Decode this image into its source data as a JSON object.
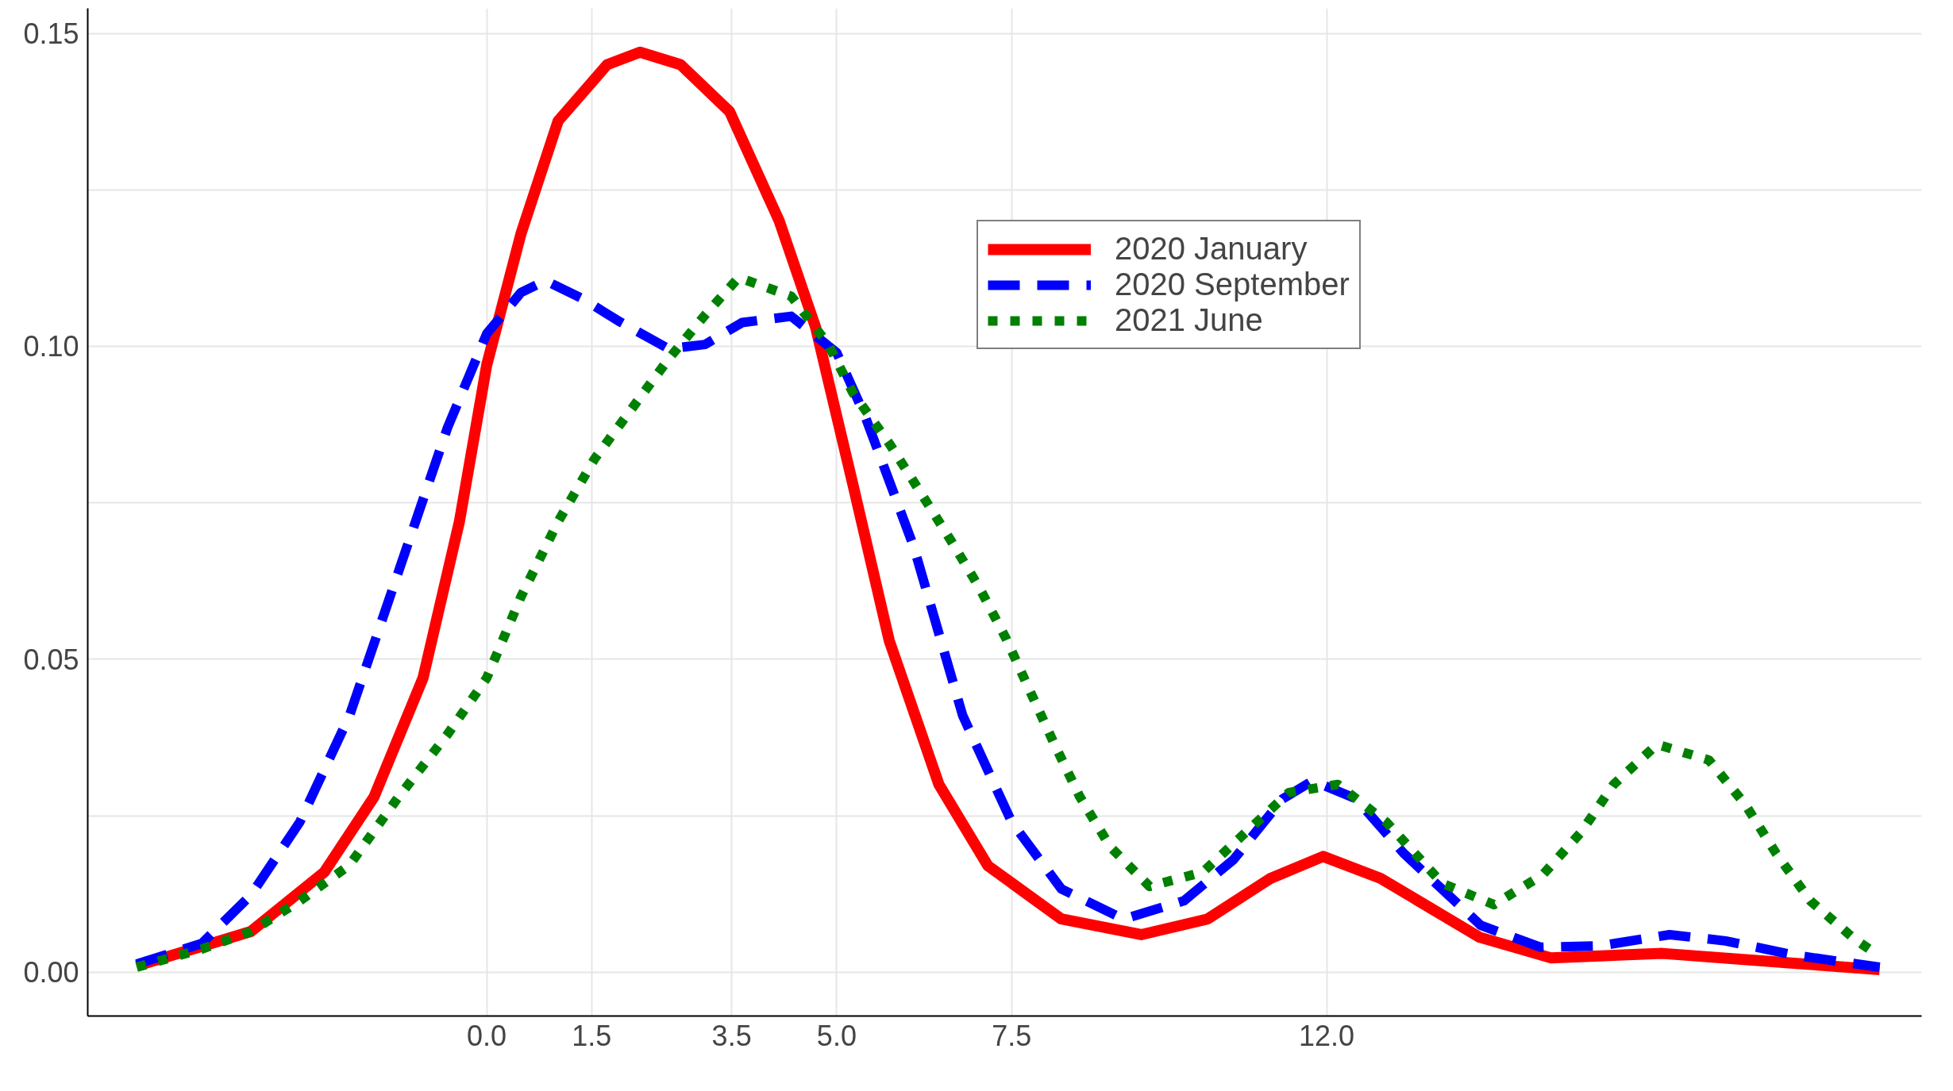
{
  "chart_data": {
    "type": "line",
    "xlim": [
      -5.7,
      20.5
    ],
    "ylim": [
      -0.007,
      0.154
    ],
    "xticks": [
      {
        "value": 0,
        "label": "0.0"
      },
      {
        "value": 1.5,
        "label": "1.5"
      },
      {
        "value": 3.5,
        "label": "3.5"
      },
      {
        "value": 5,
        "label": "5.0"
      },
      {
        "value": 7.5,
        "label": "7.5"
      },
      {
        "value": 12,
        "label": "12.0"
      }
    ],
    "yticks": [
      {
        "value": 0,
        "label": "0.00"
      },
      {
        "value": 0.025,
        "label": null
      },
      {
        "value": 0.05,
        "label": "0.05"
      },
      {
        "value": 0.075,
        "label": null
      },
      {
        "value": 0.1,
        "label": "0.10"
      },
      {
        "value": 0.125,
        "label": null
      },
      {
        "value": 0.15,
        "label": "0.15"
      }
    ],
    "grid": true,
    "legend": "top right",
    "series": [
      {
        "name": "2020 January",
        "color": "#ff0000",
        "line_style": "solid",
        "x": [
          -5.0,
          -3.37,
          -2.32,
          -1.61,
          -0.91,
          -0.39,
          0,
          0.49,
          1.02,
          1.72,
          2.19,
          2.77,
          3.47,
          4.18,
          4.7,
          5.23,
          5.75,
          6.46,
          7.16,
          8.21,
          9.35,
          10.3,
          11.2,
          11.95,
          12.77,
          14.18,
          15.2,
          16.8,
          18.6,
          19.9
        ],
        "values": [
          0.001,
          0.0065,
          0.016,
          0.028,
          0.047,
          0.072,
          0.097,
          0.118,
          0.136,
          0.145,
          0.147,
          0.145,
          0.1375,
          0.12,
          0.103,
          0.078,
          0.053,
          0.03,
          0.017,
          0.0085,
          0.006,
          0.0085,
          0.015,
          0.0185,
          0.015,
          0.0056,
          0.0023,
          0.003,
          0.0015,
          0.0004
        ]
      },
      {
        "name": "2020 September",
        "color": "#0000ff",
        "line_style": "dashed",
        "x": [
          -5.0,
          -4.07,
          -3.37,
          -2.67,
          -1.96,
          -1.26,
          -0.56,
          0,
          0.49,
          0.84,
          1.37,
          1.89,
          2.6,
          3.12,
          3.65,
          4.35,
          5.0,
          5.4,
          6.1,
          6.8,
          7.5,
          8.21,
          9.1,
          9.96,
          10.67,
          11.37,
          11.8,
          12.42,
          13.1,
          14.2,
          15.05,
          15.9,
          16.9,
          17.7,
          18.7,
          19.9
        ],
        "values": [
          0.0013,
          0.0046,
          0.0123,
          0.024,
          0.041,
          0.064,
          0.087,
          0.102,
          0.1086,
          0.1105,
          0.1076,
          0.104,
          0.0996,
          0.1003,
          0.1038,
          0.1048,
          0.099,
          0.089,
          0.068,
          0.041,
          0.024,
          0.0133,
          0.0085,
          0.0114,
          0.018,
          0.0277,
          0.0306,
          0.0277,
          0.019,
          0.0075,
          0.004,
          0.0042,
          0.006,
          0.005,
          0.0027,
          0.0008
        ]
      },
      {
        "name": "2021 June",
        "color": "#008000",
        "line_style": "dotted",
        "x": [
          -5,
          -4.07,
          -3.37,
          -2.67,
          -1.96,
          -1.26,
          -0.56,
          0,
          0.49,
          1.02,
          1.54,
          2.07,
          2.6,
          3.12,
          3.6,
          4.35,
          4.88,
          5.23,
          5.75,
          6.19,
          6.63,
          7.04,
          7.42,
          7.77,
          8.12,
          8.47,
          8.91,
          9.47,
          10.23,
          10.84,
          11.46,
          12.16,
          12.86,
          13.65,
          14.39,
          15.09,
          15.63,
          16.1,
          16.72,
          17.46,
          17.98,
          18.42,
          18.91,
          19.53,
          19.88
        ],
        "values": [
          0.0008,
          0.0037,
          0.0065,
          0.0114,
          0.0171,
          0.028,
          0.038,
          0.047,
          0.06,
          0.072,
          0.082,
          0.09,
          0.098,
          0.105,
          0.111,
          0.108,
          0.1003,
          0.0926,
          0.0845,
          0.0768,
          0.069,
          0.0614,
          0.0533,
          0.0447,
          0.0362,
          0.0281,
          0.02,
          0.0137,
          0.016,
          0.0223,
          0.0287,
          0.03,
          0.0239,
          0.0142,
          0.0108,
          0.0156,
          0.0223,
          0.03,
          0.0364,
          0.0339,
          0.0268,
          0.019,
          0.0114,
          0.0054,
          0.0027
        ]
      }
    ]
  }
}
